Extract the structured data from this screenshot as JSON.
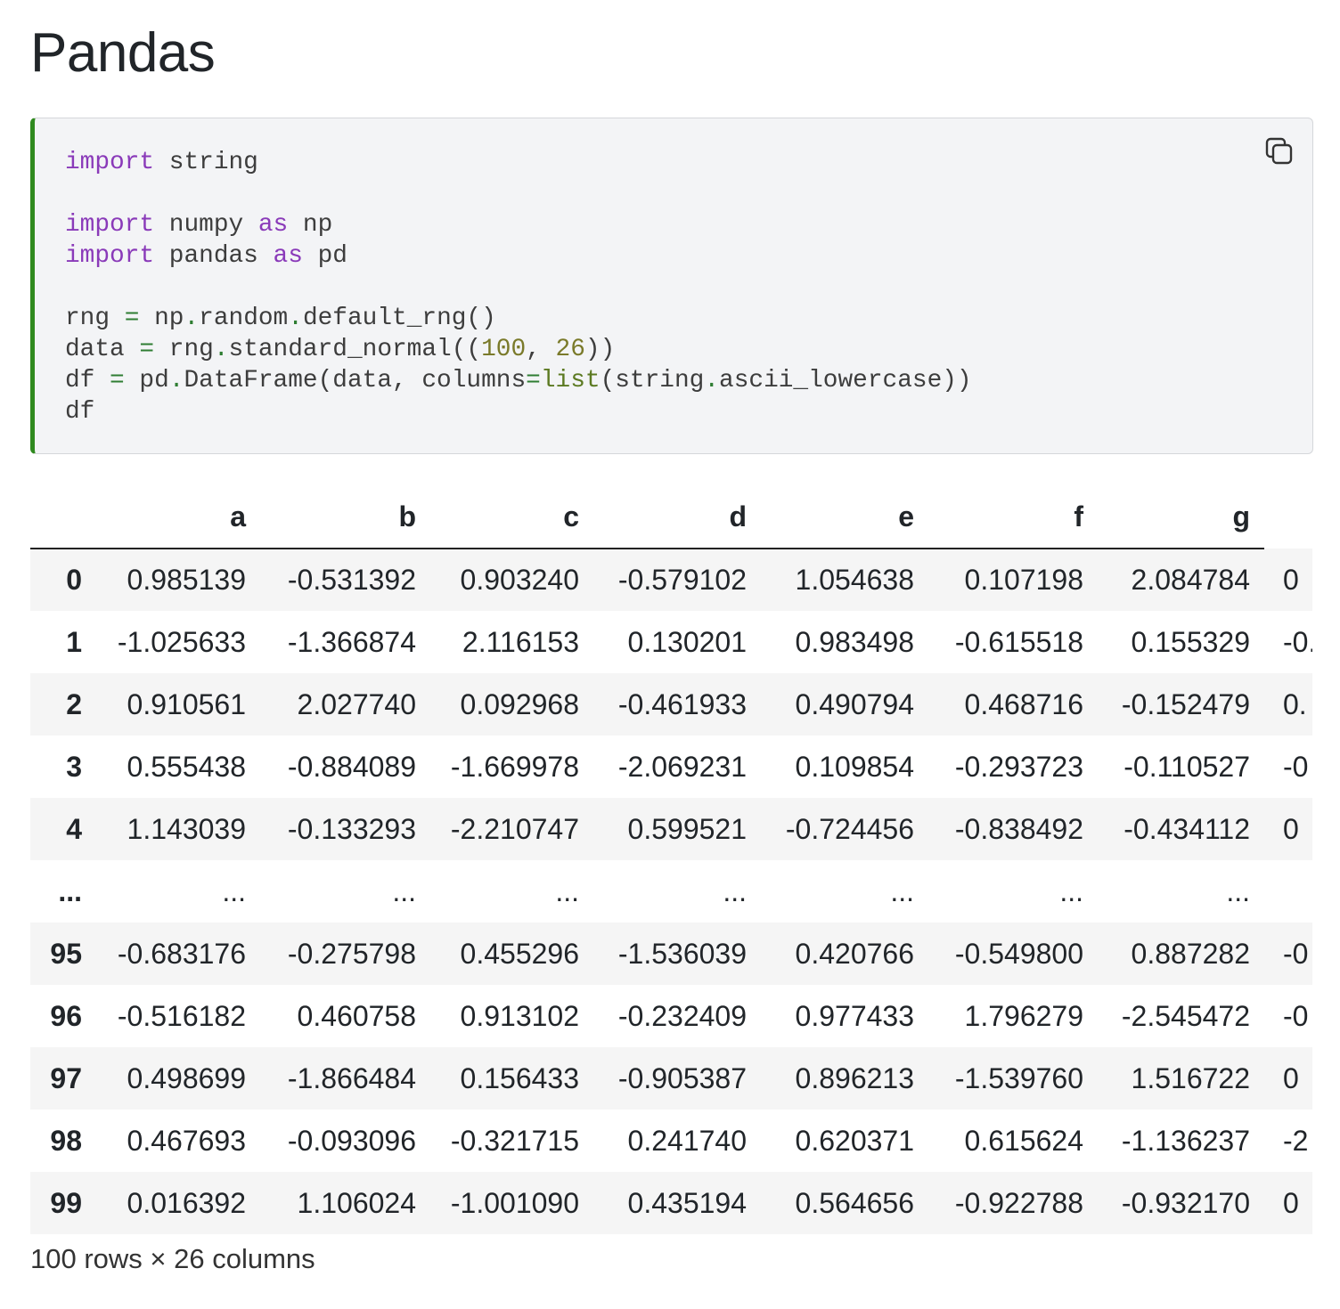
{
  "header": {
    "title": "Pandas"
  },
  "code": {
    "lines": [
      [
        {
          "text": "import",
          "color": "#8a3ab9"
        },
        {
          "text": " string",
          "color": "#3d3d3d"
        }
      ],
      [],
      [
        {
          "text": "import",
          "color": "#8a3ab9"
        },
        {
          "text": " numpy ",
          "color": "#3d3d3d"
        },
        {
          "text": "as",
          "color": "#8a3ab9"
        },
        {
          "text": " np",
          "color": "#3d3d3d"
        }
      ],
      [
        {
          "text": "import",
          "color": "#8a3ab9"
        },
        {
          "text": " pandas ",
          "color": "#3d3d3d"
        },
        {
          "text": "as",
          "color": "#8a3ab9"
        },
        {
          "text": " pd",
          "color": "#3d3d3d"
        }
      ],
      [],
      [
        {
          "text": "rng ",
          "color": "#3d3d3d"
        },
        {
          "text": "=",
          "color": "#2e7d32"
        },
        {
          "text": " np",
          "color": "#3d3d3d"
        },
        {
          "text": ".",
          "color": "#2e7d32"
        },
        {
          "text": "random",
          "color": "#3d3d3d"
        },
        {
          "text": ".",
          "color": "#2e7d32"
        },
        {
          "text": "default_rng()",
          "color": "#3d3d3d"
        }
      ],
      [
        {
          "text": "data ",
          "color": "#3d3d3d"
        },
        {
          "text": "=",
          "color": "#2e7d32"
        },
        {
          "text": " rng",
          "color": "#3d3d3d"
        },
        {
          "text": ".",
          "color": "#2e7d32"
        },
        {
          "text": "standard_normal((",
          "color": "#3d3d3d"
        },
        {
          "text": "100",
          "color": "#7a7a2a"
        },
        {
          "text": ", ",
          "color": "#3d3d3d"
        },
        {
          "text": "26",
          "color": "#7a7a2a"
        },
        {
          "text": "))",
          "color": "#3d3d3d"
        }
      ],
      [
        {
          "text": "df ",
          "color": "#3d3d3d"
        },
        {
          "text": "=",
          "color": "#2e7d32"
        },
        {
          "text": " pd",
          "color": "#3d3d3d"
        },
        {
          "text": ".",
          "color": "#2e7d32"
        },
        {
          "text": "DataFrame(data, columns",
          "color": "#3d3d3d"
        },
        {
          "text": "=",
          "color": "#2e7d32"
        },
        {
          "text": "list",
          "color": "#5c7a22"
        },
        {
          "text": "(string",
          "color": "#3d3d3d"
        },
        {
          "text": ".",
          "color": "#2e7d32"
        },
        {
          "text": "ascii_lowercase))",
          "color": "#3d3d3d"
        }
      ],
      [
        {
          "text": "df",
          "color": "#3d3d3d"
        }
      ]
    ]
  },
  "table": {
    "columns": [
      "a",
      "b",
      "c",
      "d",
      "e",
      "f",
      "g"
    ],
    "rows": [
      {
        "index": "0",
        "values": [
          "0.985139",
          "-0.531392",
          "0.903240",
          "-0.579102",
          "1.054638",
          "0.107198",
          "2.084784",
          "0"
        ]
      },
      {
        "index": "1",
        "values": [
          "-1.025633",
          "-1.366874",
          "2.116153",
          "0.130201",
          "0.983498",
          "-0.615518",
          "0.155329",
          "-0."
        ]
      },
      {
        "index": "2",
        "values": [
          "0.910561",
          "2.027740",
          "0.092968",
          "-0.461933",
          "0.490794",
          "0.468716",
          "-0.152479",
          "0."
        ]
      },
      {
        "index": "3",
        "values": [
          "0.555438",
          "-0.884089",
          "-1.669978",
          "-2.069231",
          "0.109854",
          "-0.293723",
          "-0.110527",
          "-0"
        ]
      },
      {
        "index": "4",
        "values": [
          "1.143039",
          "-0.133293",
          "-2.210747",
          "0.599521",
          "-0.724456",
          "-0.838492",
          "-0.434112",
          "0"
        ]
      },
      {
        "index": "...",
        "values": [
          "...",
          "...",
          "...",
          "...",
          "...",
          "...",
          "..."
        ]
      },
      {
        "index": "95",
        "values": [
          "-0.683176",
          "-0.275798",
          "0.455296",
          "-1.536039",
          "0.420766",
          "-0.549800",
          "0.887282",
          "-0"
        ]
      },
      {
        "index": "96",
        "values": [
          "-0.516182",
          "0.460758",
          "0.913102",
          "-0.232409",
          "0.977433",
          "1.796279",
          "-2.545472",
          "-0"
        ]
      },
      {
        "index": "97",
        "values": [
          "0.498699",
          "-1.866484",
          "0.156433",
          "-0.905387",
          "0.896213",
          "-1.539760",
          "1.516722",
          "0"
        ]
      },
      {
        "index": "98",
        "values": [
          "0.467693",
          "-0.093096",
          "-0.321715",
          "0.241740",
          "0.620371",
          "0.615624",
          "-1.136237",
          "-2"
        ]
      },
      {
        "index": "99",
        "values": [
          "0.016392",
          "1.106024",
          "-1.001090",
          "0.435194",
          "0.564656",
          "-0.922788",
          "-0.932170",
          "0"
        ]
      }
    ],
    "footer": "100 rows × 26 columns"
  }
}
